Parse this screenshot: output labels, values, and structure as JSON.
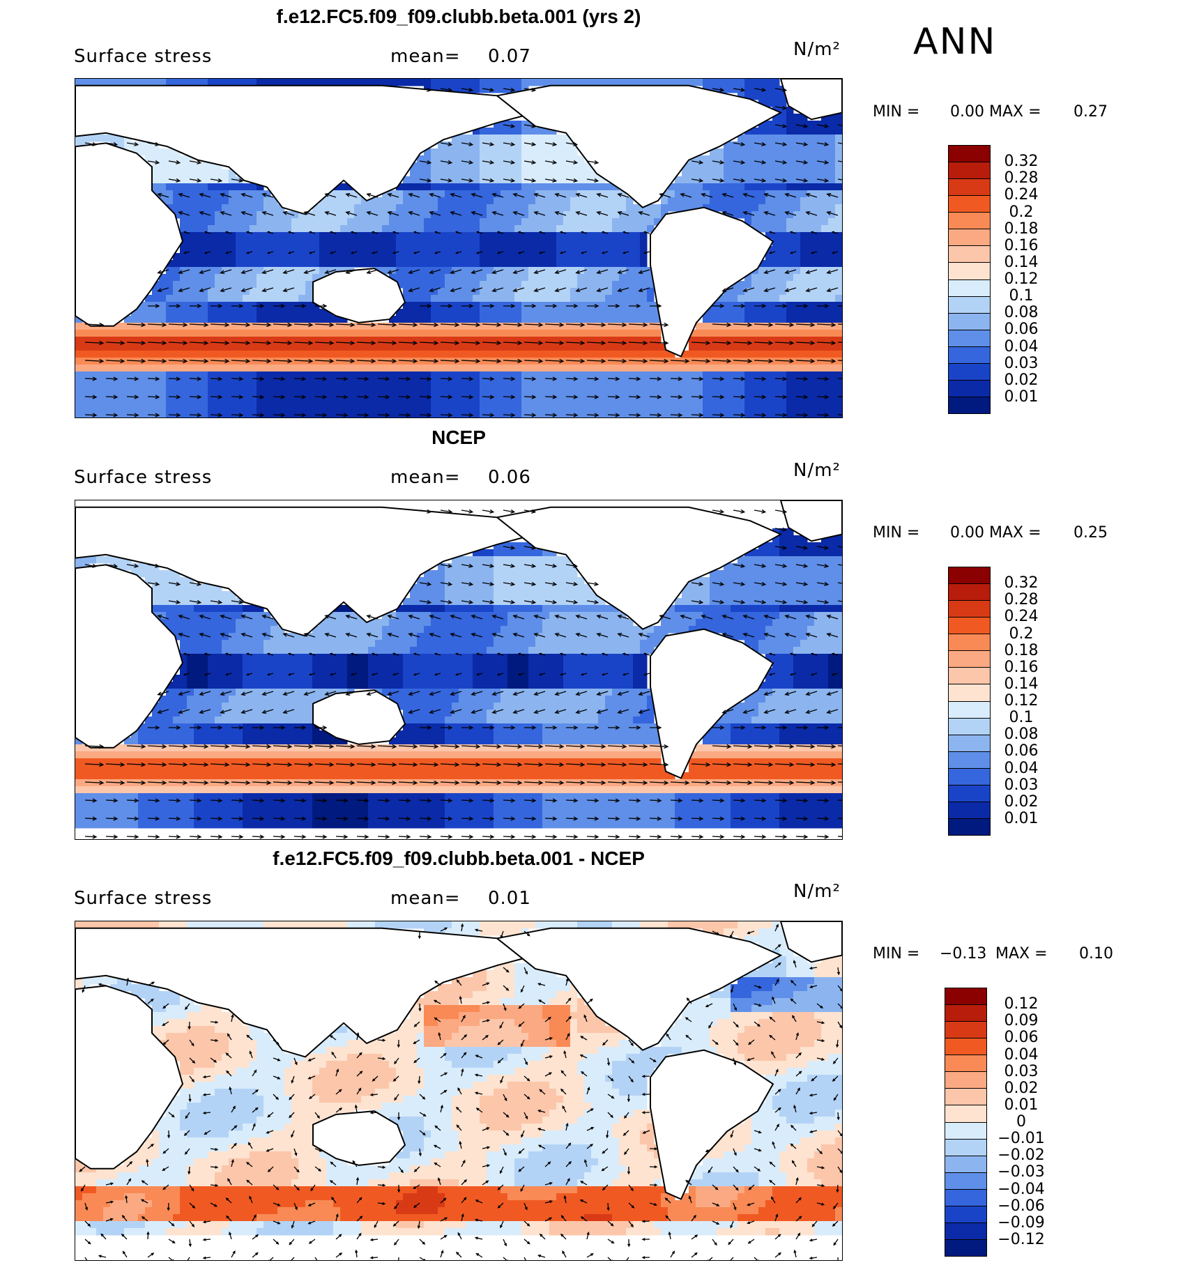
{
  "season_label": "ANN",
  "units": "N/m²",
  "panels": [
    {
      "title": "f.e12.FC5.f09_f09.clubb.beta.001 (yrs 2)",
      "variable": "Surface stress",
      "mean_label": "mean=",
      "mean_value": "0.07",
      "min_label": "MIN =",
      "min_value": "0.00",
      "max_label": "MAX =",
      "max_value": "0.27",
      "levels": [
        "0.32",
        "0.28",
        "0.24",
        "0.2",
        "0.18",
        "0.16",
        "0.14",
        "0.12",
        "0.1",
        "0.08",
        "0.06",
        "0.04",
        "0.03",
        "0.02",
        "0.01"
      ],
      "colors": [
        "#8b0000",
        "#b81d0c",
        "#d93a16",
        "#f05a22",
        "#f98a55",
        "#fba982",
        "#fcc6aa",
        "#fde3d0",
        "#d9ecfb",
        "#b3d3f6",
        "#8cb5f0",
        "#5f8fe8",
        "#3566dd",
        "#1a44c8",
        "#0a2aa8",
        "#001a80"
      ],
      "field": "model"
    },
    {
      "title": "NCEP",
      "variable": "Surface stress",
      "mean_label": "mean=",
      "mean_value": "0.06",
      "min_label": "MIN =",
      "min_value": "0.00",
      "max_label": "MAX =",
      "max_value": "0.25",
      "levels": [
        "0.32",
        "0.28",
        "0.24",
        "0.2",
        "0.18",
        "0.16",
        "0.14",
        "0.12",
        "0.1",
        "0.08",
        "0.06",
        "0.04",
        "0.03",
        "0.02",
        "0.01"
      ],
      "colors": [
        "#8b0000",
        "#b81d0c",
        "#d93a16",
        "#f05a22",
        "#f98a55",
        "#fba982",
        "#fcc6aa",
        "#fde3d0",
        "#d9ecfb",
        "#b3d3f6",
        "#8cb5f0",
        "#5f8fe8",
        "#3566dd",
        "#1a44c8",
        "#0a2aa8",
        "#001a80"
      ],
      "field": "obs"
    },
    {
      "title": "f.e12.FC5.f09_f09.clubb.beta.001 - NCEP",
      "variable": "Surface stress",
      "mean_label": "mean=",
      "mean_value": "0.01",
      "min_label": "MIN =",
      "min_value": "−0.13",
      "max_label": "MAX =",
      "max_value": "0.10",
      "levels": [
        "0.12",
        "0.09",
        "0.06",
        "0.04",
        "0.03",
        "0.02",
        "0.01",
        "0",
        "−0.01",
        "−0.02",
        "−0.03",
        "−0.04",
        "−0.06",
        "−0.09",
        "−0.12"
      ],
      "colors": [
        "#8b0000",
        "#b81d0c",
        "#d93a16",
        "#f05a22",
        "#f98a55",
        "#fba982",
        "#fcc6aa",
        "#fde3d0",
        "#d9ecfb",
        "#b3d3f6",
        "#8cb5f0",
        "#5f8fe8",
        "#3566dd",
        "#1a44c8",
        "#0a2aa8",
        "#001a80"
      ],
      "field": "diff"
    }
  ]
}
